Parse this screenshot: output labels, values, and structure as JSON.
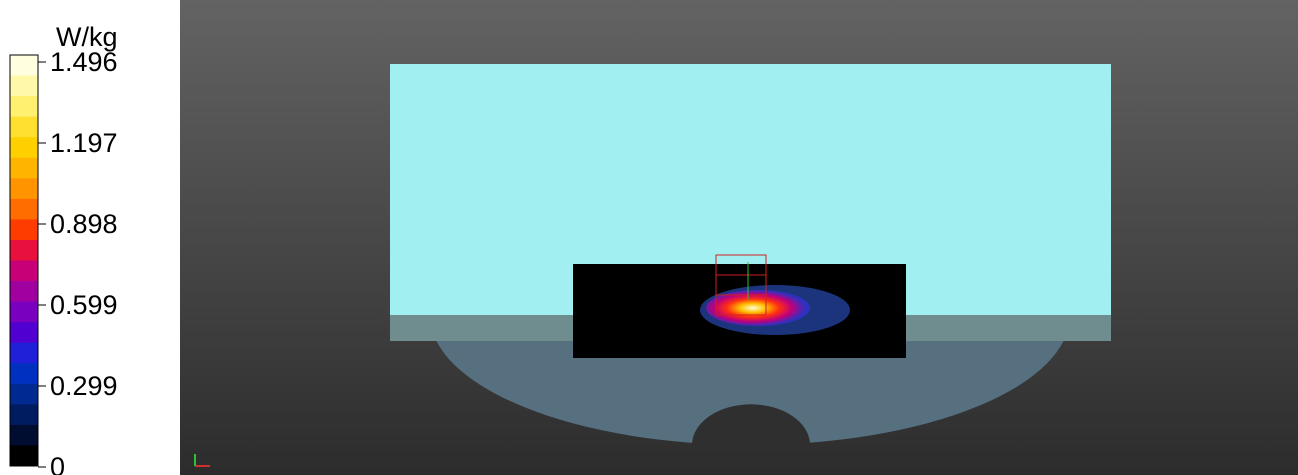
{
  "legend": {
    "unit": "W/kg",
    "ticks": [
      "1.496",
      "1.197",
      "0.898",
      "0.599",
      "0.299",
      "0"
    ]
  }
}
